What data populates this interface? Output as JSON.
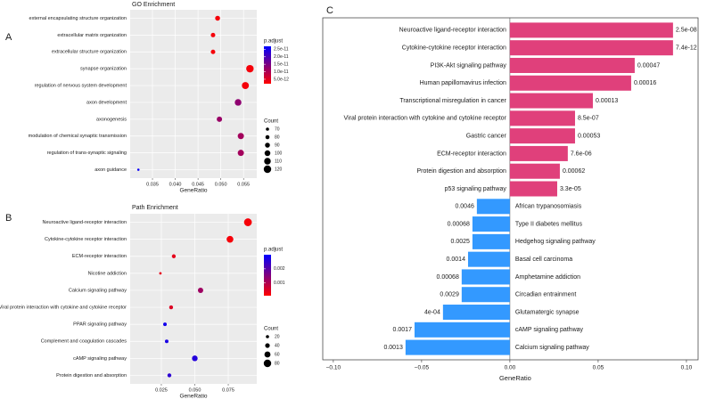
{
  "chart_data": [
    {
      "type": "dot",
      "panel": "A",
      "title": "GO Enrichment",
      "categories": [
        "external encapsulating structure organization",
        "extracellular matrix organization",
        "extracellular structure organization",
        "synapse organization",
        "regulation of nervous system development",
        "axon development",
        "axonogenesis",
        "modulation of chemical synaptic transmission",
        "regulation of trans-synaptic signaling",
        "axon guidance"
      ],
      "values": [
        0.0493,
        0.0483,
        0.0483,
        0.0564,
        0.0554,
        0.0538,
        0.0497,
        0.0544,
        0.0544,
        0.0319
      ],
      "counts": [
        90,
        85,
        85,
        120,
        115,
        110,
        95,
        105,
        105,
        60
      ],
      "padjust": [
        3e-12,
        3e-12,
        3e-12,
        3e-12,
        3e-12,
        1.3e-11,
        1.2e-11,
        1.1e-11,
        1.1e-11,
        2.6e-11
      ],
      "xlim": [
        0.0301,
        0.0579
      ],
      "xticks": [
        0.035,
        {
          "value": 0.04,
          "label": "0.040"
        },
        0.045,
        {
          "value": 0.05,
          "label": "0.050"
        },
        0.055
      ],
      "xlabel": "GeneRatio",
      "color_title": "p.adjust",
      "color_lim": [
        2e-12,
        2.7e-11
      ],
      "color_ticks": [
        {
          "value": 2.5e-11,
          "label": "2.5e-11"
        },
        {
          "value": 2e-11,
          "label": "2.0e-11"
        },
        {
          "value": 1.5e-11,
          "label": "1.5e-11"
        },
        {
          "value": 1e-11,
          "label": "1.0e-11"
        },
        {
          "value": 5e-12,
          "label": "5.0e-12"
        }
      ],
      "low_color": "#ff0000",
      "high_color": "#0000ff",
      "size_title": "Count",
      "size_ticks": [
        70,
        80,
        90,
        100,
        110,
        120
      ],
      "grid": true
    },
    {
      "type": "dot",
      "panel": "B",
      "title": "Path Enrichment",
      "categories": [
        "Neuroactive ligand-receptor interaction",
        "Cytokine-cytokine receptor interaction",
        "ECM-receptor interaction",
        "Nicotine addiction",
        "Calcium signaling pathway",
        "Viral protein interaction with cytokine and cytokine receptor",
        "PPAR signaling pathway",
        "Complement and coagulation cascades",
        "cAMP signaling pathway",
        "Protein digestion and absorption"
      ],
      "values": [
        0.0897,
        0.0763,
        0.0343,
        0.0243,
        0.0543,
        0.0323,
        0.0277,
        0.029,
        0.05,
        0.031
      ],
      "counts": [
        85,
        70,
        30,
        10,
        50,
        30,
        25,
        25,
        55,
        30
      ],
      "padjust": [
        0.0002,
        0.0002,
        0.0004,
        0.0004,
        0.0012,
        0.0005,
        0.0028,
        0.0027,
        0.0026,
        0.0025
      ],
      "xlim": [
        0.0017,
        0.0963
      ],
      "xticks": [
        0.025,
        {
          "value": 0.05,
          "label": "0.050"
        },
        0.075
      ],
      "xlabel": "GeneRatio",
      "color_title": "p.adjust",
      "color_lim": [
        0.0001,
        0.003
      ],
      "color_ticks": [
        0.002,
        0.001
      ],
      "low_color": "#ff0000",
      "high_color": "#0000ff",
      "size_title": "Count",
      "size_ticks": [
        20,
        40,
        60,
        80
      ],
      "grid": true
    },
    {
      "type": "hbar",
      "panel": "C",
      "categories": [
        "Neuroactive ligand-receptor interaction",
        "Cytokine-cytokine receptor interaction",
        "PI3K-Akt signaling pathway",
        "Human papillomavirus infection",
        "Transcriptional misregulation in cancer",
        "Viral protein interaction with cytokine and cytokine receptor",
        "Gastric cancer",
        "ECM-receptor interaction",
        "Protein digestion and absorption",
        "p53 signaling pathway",
        "African trypanosomiasis",
        "Type II diabetes mellitus",
        "Hedgehog signaling pathway",
        "Basal cell carcinoma",
        "Amphetamine addiction",
        "Circadian entrainment",
        "Glutamatergic synapse",
        "cAMP signaling pathway",
        "Calcium signaling pathway"
      ],
      "values": [
        0.0924,
        0.0924,
        0.0707,
        0.0687,
        0.047,
        0.0369,
        0.0369,
        0.0328,
        0.0283,
        0.0268,
        -0.0187,
        -0.0212,
        -0.0212,
        -0.0237,
        -0.0273,
        -0.0273,
        -0.0379,
        -0.054,
        -0.0591
      ],
      "pvalue_labels": [
        "2.5e-08",
        "7.4e-12",
        "0.00047",
        "0.00016",
        "0.00013",
        "8.5e-07",
        "0.00053",
        "7.6e-06",
        "0.00062",
        "3.3e-05",
        "0.0046",
        "0.00068",
        "0.0025",
        "0.0014",
        "0.00068",
        "0.0029",
        "4e-04",
        "0.0017",
        "0.0013"
      ],
      "xlim": [
        -0.106,
        0.1066
      ],
      "xticks": [
        {
          "value": -0.1,
          "label": "−0.10"
        },
        {
          "value": -0.05,
          "label": "−0.05"
        },
        {
          "value": 0,
          "label": "0.00"
        },
        0.05,
        {
          "value": 0.1,
          "label": "0.10"
        }
      ],
      "xlabel": "GeneRatio",
      "pos_color": "#e0407b",
      "neg_color": "#3399ff",
      "label_color": "#e8242b"
    }
  ]
}
